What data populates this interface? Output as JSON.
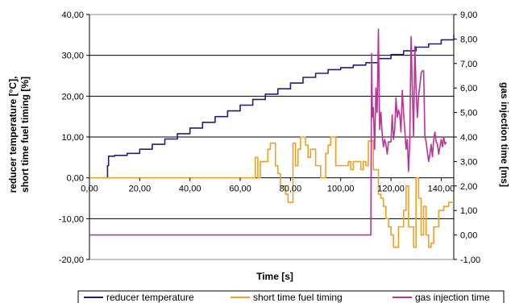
{
  "chart_data": {
    "type": "line",
    "xlabel": "Time [s]",
    "ylabel_left_line1": "reducer temperature [°C],",
    "ylabel_left_line2": "short time fuel timing [%]",
    "ylabel_right": "gas injection time [ms]",
    "xlim": [
      0,
      145
    ],
    "ylim_left": [
      -20,
      40
    ],
    "ylim_right": [
      -1,
      9
    ],
    "x_ticks": [
      {
        "value": 0,
        "label": "0,00"
      },
      {
        "value": 20,
        "label": "20,00"
      },
      {
        "value": 40,
        "label": "40,00"
      },
      {
        "value": 60,
        "label": "60,00"
      },
      {
        "value": 80,
        "label": "80,00"
      },
      {
        "value": 100,
        "label": "100,00"
      },
      {
        "value": 120,
        "label": "120,00"
      },
      {
        "value": 140,
        "label": "140,00"
      }
    ],
    "y_left_ticks": [
      {
        "value": 40,
        "label": "40,00"
      },
      {
        "value": 30,
        "label": "30,00"
      },
      {
        "value": 20,
        "label": "20,00"
      },
      {
        "value": 10,
        "label": "10,00"
      },
      {
        "value": 0,
        "label": "0,00"
      },
      {
        "value": -10,
        "label": "-10,00"
      },
      {
        "value": -20,
        "label": "-20,00"
      }
    ],
    "y_right_ticks": [
      {
        "value": 9,
        "label": "9,00"
      },
      {
        "value": 8,
        "label": "8,00"
      },
      {
        "value": 7,
        "label": "7,00"
      },
      {
        "value": 6,
        "label": "6,00"
      },
      {
        "value": 5,
        "label": "5,00"
      },
      {
        "value": 4,
        "label": "4,00"
      },
      {
        "value": 3,
        "label": "3,00"
      },
      {
        "value": 2,
        "label": "2,00"
      },
      {
        "value": 1,
        "label": "1,00"
      },
      {
        "value": 0,
        "label": "0,00"
      },
      {
        "value": -1,
        "label": "-1,00"
      }
    ],
    "grid": "horizontal",
    "legend_position": "bottom",
    "series": [
      {
        "name": "reducer temperature",
        "axis": "left",
        "color": "#1f1f7a",
        "step": true,
        "points": [
          [
            6.8,
            0
          ],
          [
            7.2,
            3
          ],
          [
            7.6,
            5.3
          ],
          [
            10,
            5.5
          ],
          [
            15,
            6
          ],
          [
            20,
            7
          ],
          [
            25,
            8.2
          ],
          [
            30,
            9.5
          ],
          [
            35,
            10.8
          ],
          [
            40,
            12.2
          ],
          [
            45,
            13.6
          ],
          [
            50,
            15
          ],
          [
            55,
            16.4
          ],
          [
            60,
            17.8
          ],
          [
            65,
            19.2
          ],
          [
            70,
            20.5
          ],
          [
            75,
            21.8
          ],
          [
            80,
            23.2
          ],
          [
            85,
            24.6
          ],
          [
            90,
            25.6
          ],
          [
            95,
            26.5
          ],
          [
            100,
            27
          ],
          [
            105,
            27.6
          ],
          [
            110,
            28.2
          ],
          [
            115,
            29.2
          ],
          [
            120,
            30.2
          ],
          [
            125,
            31.1
          ],
          [
            130,
            32
          ],
          [
            135,
            32.8
          ],
          [
            140,
            33.8
          ],
          [
            145,
            35
          ]
        ]
      },
      {
        "name": "short time fuel timing",
        "axis": "left",
        "color": "#f0a020",
        "step": true,
        "points": [
          [
            0,
            0
          ],
          [
            65,
            0
          ],
          [
            66,
            5
          ],
          [
            67,
            0
          ],
          [
            68,
            4
          ],
          [
            70,
            4
          ],
          [
            71,
            7
          ],
          [
            72,
            8.5
          ],
          [
            73,
            8.5
          ],
          [
            74,
            3
          ],
          [
            75,
            1
          ],
          [
            76,
            -2
          ],
          [
            77,
            -2
          ],
          [
            78,
            -4
          ],
          [
            79,
            -6
          ],
          [
            80,
            -6
          ],
          [
            81,
            8.5
          ],
          [
            82,
            3
          ],
          [
            83,
            7
          ],
          [
            84,
            10
          ],
          [
            85,
            10
          ],
          [
            86,
            8
          ],
          [
            87,
            5
          ],
          [
            88,
            7
          ],
          [
            89,
            7
          ],
          [
            90,
            3
          ],
          [
            91,
            3
          ],
          [
            92,
            0
          ],
          [
            93,
            0
          ],
          [
            94,
            6
          ],
          [
            95,
            8
          ],
          [
            96,
            10
          ],
          [
            97,
            10
          ],
          [
            98,
            3
          ],
          [
            100,
            3
          ],
          [
            101,
            3
          ],
          [
            102,
            3
          ],
          [
            103,
            4
          ],
          [
            104,
            2
          ],
          [
            105,
            4
          ],
          [
            107,
            4
          ],
          [
            108,
            2
          ],
          [
            109,
            4
          ],
          [
            110,
            3
          ],
          [
            111,
            9
          ],
          [
            112,
            9
          ],
          [
            113,
            2
          ],
          [
            114,
            2
          ],
          [
            115,
            -4
          ],
          [
            116,
            -5
          ],
          [
            117,
            -7
          ],
          [
            118,
            -10
          ],
          [
            119,
            -12
          ],
          [
            120,
            -14
          ],
          [
            121,
            -17
          ],
          [
            122,
            -17
          ],
          [
            123,
            -12
          ],
          [
            124,
            -12
          ],
          [
            125,
            -8
          ],
          [
            126,
            -2
          ],
          [
            127,
            -12
          ],
          [
            128,
            -12
          ],
          [
            129,
            -17
          ],
          [
            130,
            0
          ],
          [
            131,
            -5
          ],
          [
            132,
            -14
          ],
          [
            133,
            -7
          ],
          [
            134,
            -14
          ],
          [
            135,
            -17
          ],
          [
            136,
            -16
          ],
          [
            137,
            -12
          ],
          [
            138,
            -12
          ],
          [
            139,
            -8
          ],
          [
            140,
            -8
          ],
          [
            141,
            -7
          ],
          [
            142,
            -7
          ],
          [
            143,
            -6
          ],
          [
            145,
            -6
          ]
        ]
      },
      {
        "name": "gas injection time",
        "axis": "right",
        "color": "#bb3399",
        "step": false,
        "points": [
          [
            0,
            0
          ],
          [
            112,
            0
          ],
          [
            112.3,
            7.4
          ],
          [
            112.6,
            4.8
          ],
          [
            113,
            5.2
          ],
          [
            113.5,
            3.5
          ],
          [
            114,
            6
          ],
          [
            114.5,
            5
          ],
          [
            115,
            8.4
          ],
          [
            115.5,
            4.3
          ],
          [
            116,
            5
          ],
          [
            116.5,
            4.1
          ],
          [
            117,
            3.6
          ],
          [
            117.5,
            3.9
          ],
          [
            118,
            3.7
          ],
          [
            118.5,
            3.3
          ],
          [
            119,
            3.8
          ],
          [
            120,
            3.8
          ],
          [
            120.5,
            4.9
          ],
          [
            121,
            3.9
          ],
          [
            121.5,
            4.3
          ],
          [
            122,
            5.6
          ],
          [
            122.5,
            4.8
          ],
          [
            123,
            5.1
          ],
          [
            123.5,
            4.9
          ],
          [
            124,
            4.2
          ],
          [
            124.5,
            5.9
          ],
          [
            125,
            5
          ],
          [
            125.5,
            4.3
          ],
          [
            126,
            3.5
          ],
          [
            126.5,
            3.9
          ],
          [
            127,
            2.6
          ],
          [
            127.5,
            3.8
          ],
          [
            128,
            8.1
          ],
          [
            128.5,
            5.9
          ],
          [
            129,
            4
          ],
          [
            129.5,
            7.7
          ],
          [
            130,
            6
          ],
          [
            130.5,
            4.8
          ],
          [
            131,
            5.7
          ],
          [
            131.5,
            6.1
          ],
          [
            132,
            6.6
          ],
          [
            132.5,
            6.7
          ],
          [
            133,
            6.7
          ],
          [
            133.5,
            4
          ],
          [
            134,
            3.8
          ],
          [
            135,
            3
          ],
          [
            135.5,
            3.3
          ],
          [
            136,
            3.7
          ],
          [
            136.5,
            3.2
          ],
          [
            137,
            3.9
          ],
          [
            137.5,
            4.2
          ],
          [
            138,
            3.8
          ],
          [
            138.5,
            3.7
          ],
          [
            139,
            3.3
          ],
          [
            140,
            3.9
          ],
          [
            140.5,
            3.6
          ],
          [
            141,
            4
          ],
          [
            141.5,
            3.7
          ],
          [
            142,
            3.8
          ]
        ]
      }
    ]
  }
}
